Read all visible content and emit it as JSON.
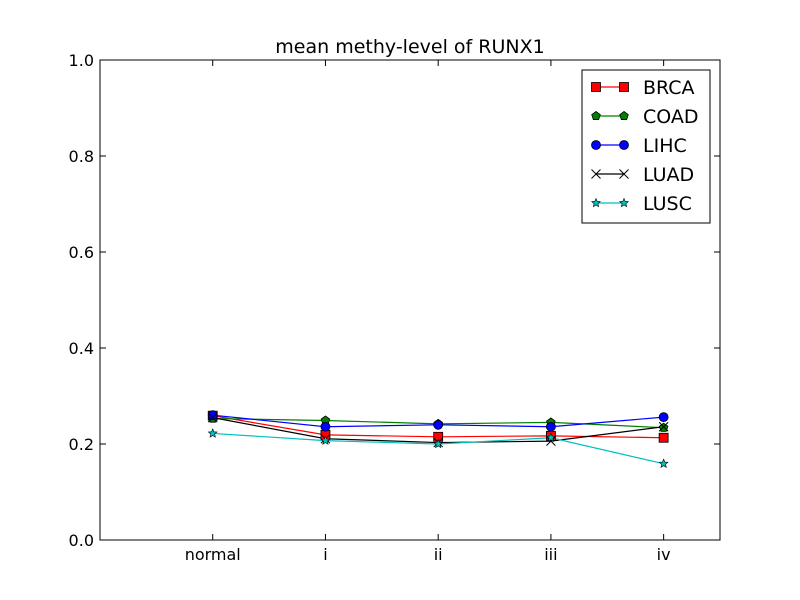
{
  "chart_data": {
    "type": "line",
    "title": "mean methy-level of RUNX1",
    "xlabel": "",
    "ylabel": "",
    "categories": [
      "normal",
      "i",
      "ii",
      "iii",
      "iv"
    ],
    "xlim": [
      -1,
      4.5
    ],
    "ylim": [
      0.0,
      1.0
    ],
    "yticks": [
      0.0,
      0.2,
      0.4,
      0.6,
      0.8,
      1.0
    ],
    "grid": false,
    "legend_position": "top-right",
    "series": [
      {
        "name": "BRCA",
        "color": "#ff0000",
        "marker": "square",
        "values": [
          0.259,
          0.219,
          0.215,
          0.217,
          0.213
        ]
      },
      {
        "name": "COAD",
        "color": "#008000",
        "marker": "pentagon",
        "values": [
          0.253,
          0.249,
          0.242,
          0.245,
          0.234
        ]
      },
      {
        "name": "LIHC",
        "color": "#0000ff",
        "marker": "circle",
        "values": [
          0.26,
          0.236,
          0.24,
          0.236,
          0.256
        ]
      },
      {
        "name": "LUAD",
        "color": "#000000",
        "marker": "x",
        "values": [
          0.255,
          0.211,
          0.203,
          0.206,
          0.236
        ]
      },
      {
        "name": "LUSC",
        "color": "#00bfbf",
        "marker": "star",
        "values": [
          0.222,
          0.207,
          0.2,
          0.213,
          0.159
        ]
      }
    ]
  }
}
